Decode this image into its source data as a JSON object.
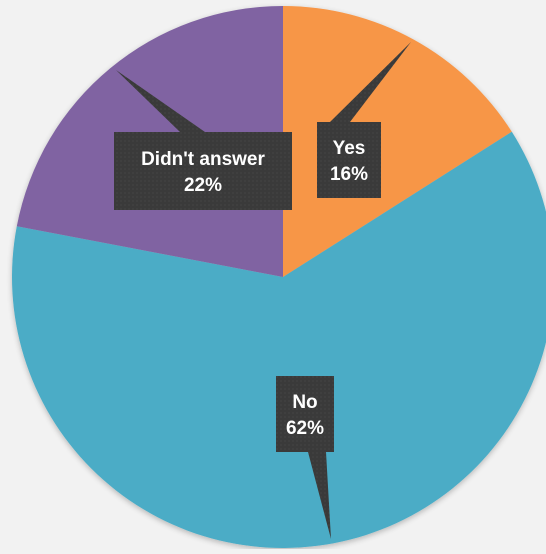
{
  "chart_data": {
    "type": "pie",
    "title": "",
    "start_angle_deg": 0,
    "direction": "clockwise",
    "slices": [
      {
        "label": "Yes",
        "value": 16,
        "display": "16%",
        "color": "#f79646"
      },
      {
        "label": "No",
        "value": 62,
        "display": "62%",
        "color": "#4bacc6"
      },
      {
        "label": "Didn't answer",
        "value": 22,
        "display": "22%",
        "color": "#8064a2"
      }
    ],
    "data_labels": {
      "style": "callout",
      "background": "#3a3a3a",
      "text_color": "#ffffff"
    },
    "legend": "none"
  }
}
